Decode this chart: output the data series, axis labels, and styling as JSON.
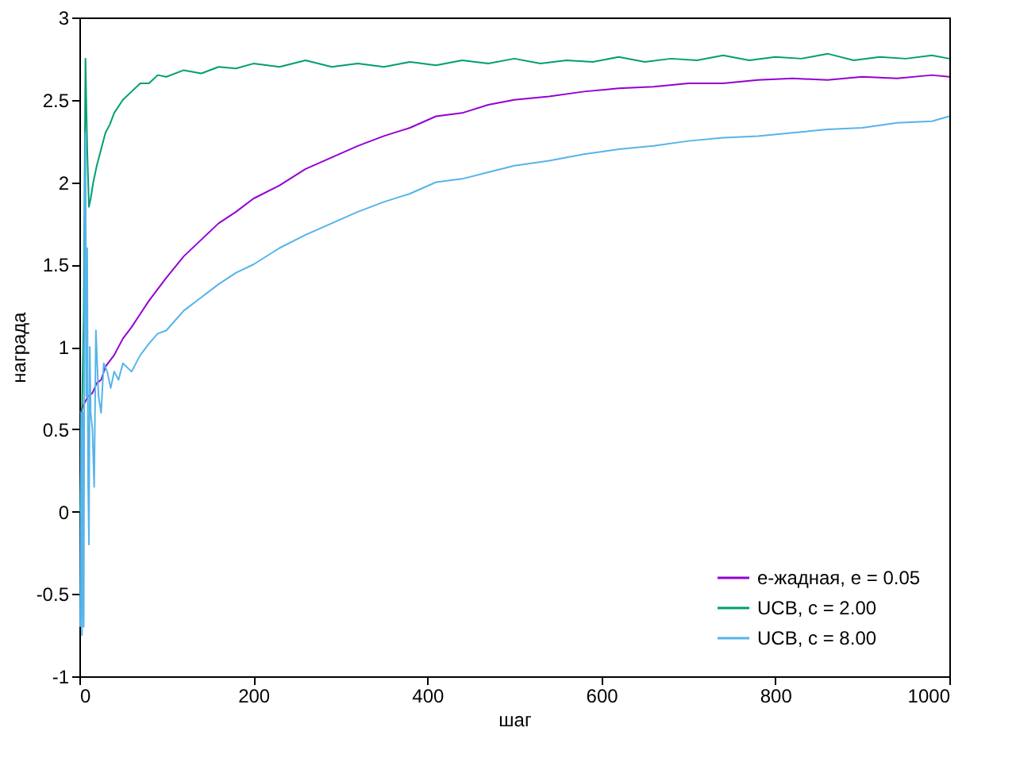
{
  "chart_data": {
    "type": "line",
    "xlabel": "шаг",
    "ylabel": "награда",
    "xlim": [
      0,
      1000
    ],
    "ylim": [
      -1,
      3
    ],
    "xticks": [
      0,
      200,
      400,
      600,
      800,
      1000
    ],
    "yticks": [
      -1,
      -0.5,
      0,
      0.5,
      1,
      1.5,
      2,
      2.5,
      3
    ],
    "grid": false,
    "legend": "bottom right",
    "line_style": "solid",
    "marker": "none",
    "series": [
      {
        "name": "e-жадная, e = 0.05",
        "color": "#9400d3",
        "x": [
          1,
          5,
          10,
          15,
          20,
          25,
          30,
          40,
          50,
          60,
          70,
          80,
          90,
          100,
          120,
          140,
          160,
          180,
          200,
          230,
          260,
          290,
          320,
          350,
          380,
          410,
          440,
          470,
          500,
          540,
          580,
          620,
          660,
          700,
          740,
          780,
          820,
          860,
          900,
          940,
          980,
          1000
        ],
        "values": [
          0.6,
          0.65,
          0.7,
          0.72,
          0.78,
          0.8,
          0.88,
          0.95,
          1.05,
          1.12,
          1.2,
          1.28,
          1.35,
          1.42,
          1.55,
          1.65,
          1.75,
          1.82,
          1.9,
          1.98,
          2.08,
          2.15,
          2.22,
          2.28,
          2.33,
          2.4,
          2.42,
          2.47,
          2.5,
          2.52,
          2.55,
          2.57,
          2.58,
          2.6,
          2.6,
          2.62,
          2.63,
          2.62,
          2.64,
          2.63,
          2.65,
          2.64
        ]
      },
      {
        "name": "UCB, c = 2.00",
        "color": "#009e73",
        "x": [
          1,
          3,
          5,
          7,
          9,
          11,
          13,
          16,
          20,
          25,
          30,
          35,
          40,
          50,
          60,
          70,
          80,
          90,
          100,
          120,
          140,
          160,
          180,
          200,
          230,
          260,
          290,
          320,
          350,
          380,
          410,
          440,
          470,
          500,
          530,
          560,
          590,
          620,
          650,
          680,
          710,
          740,
          770,
          800,
          830,
          860,
          890,
          920,
          950,
          980,
          1000
        ],
        "values": [
          0.0,
          0.6,
          1.2,
          2.75,
          2.2,
          1.85,
          1.9,
          2.0,
          2.1,
          2.2,
          2.3,
          2.35,
          2.42,
          2.5,
          2.55,
          2.6,
          2.6,
          2.65,
          2.64,
          2.68,
          2.66,
          2.7,
          2.69,
          2.72,
          2.7,
          2.74,
          2.7,
          2.72,
          2.7,
          2.73,
          2.71,
          2.74,
          2.72,
          2.75,
          2.72,
          2.74,
          2.73,
          2.76,
          2.73,
          2.75,
          2.74,
          2.77,
          2.74,
          2.76,
          2.75,
          2.78,
          2.74,
          2.76,
          2.75,
          2.77,
          2.75
        ]
      },
      {
        "name": "UCB, c = 8.00",
        "color": "#56b4e9",
        "x": [
          1,
          2,
          3,
          4,
          5,
          6,
          7,
          8,
          9,
          10,
          11,
          12,
          13,
          15,
          17,
          19,
          22,
          25,
          28,
          32,
          36,
          40,
          45,
          50,
          60,
          70,
          80,
          90,
          100,
          120,
          140,
          160,
          180,
          200,
          230,
          260,
          290,
          320,
          350,
          380,
          410,
          440,
          470,
          500,
          540,
          580,
          620,
          660,
          700,
          740,
          780,
          820,
          860,
          900,
          940,
          980,
          1000
        ],
        "values": [
          -0.7,
          0.6,
          -0.75,
          0.6,
          -0.7,
          1.6,
          2.3,
          0.7,
          1.6,
          0.2,
          -0.2,
          1.0,
          0.6,
          0.5,
          0.15,
          1.1,
          0.7,
          0.6,
          0.9,
          0.85,
          0.75,
          0.85,
          0.8,
          0.9,
          0.85,
          0.95,
          1.02,
          1.08,
          1.1,
          1.22,
          1.3,
          1.38,
          1.45,
          1.5,
          1.6,
          1.68,
          1.75,
          1.82,
          1.88,
          1.93,
          2.0,
          2.02,
          2.06,
          2.1,
          2.13,
          2.17,
          2.2,
          2.22,
          2.25,
          2.27,
          2.28,
          2.3,
          2.32,
          2.33,
          2.36,
          2.37,
          2.4
        ]
      }
    ]
  }
}
